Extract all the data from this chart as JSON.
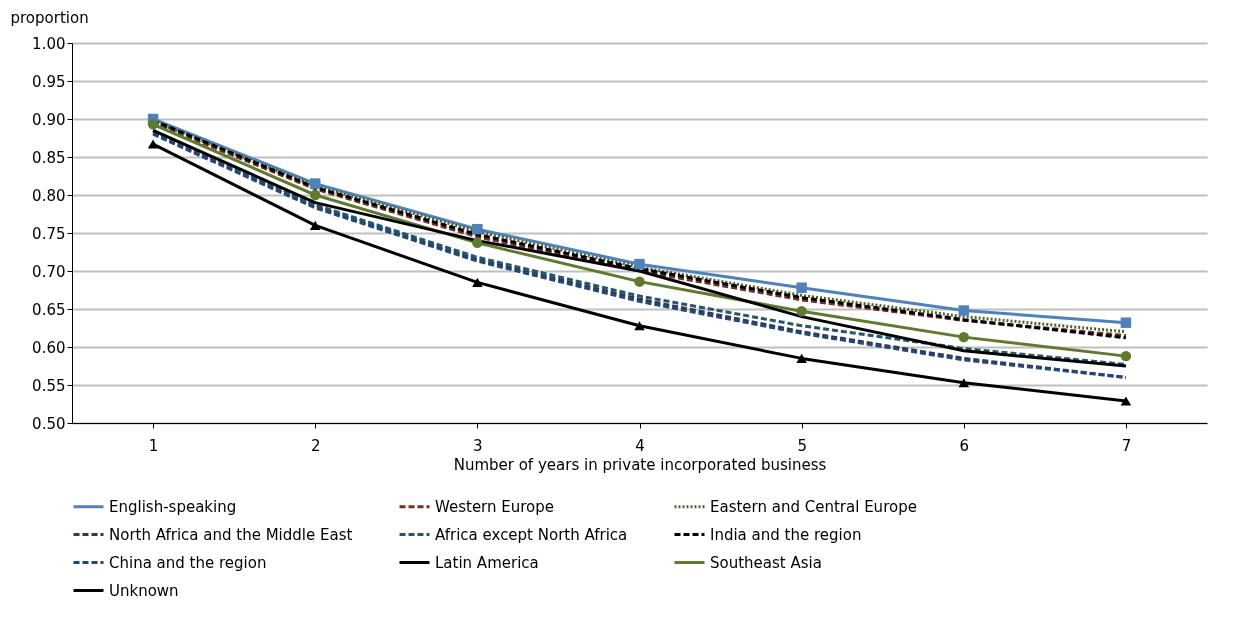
{
  "chart_data": {
    "type": "line",
    "ylabel": "proportion",
    "xlabel": "Number of years in private incorporated business",
    "x": [
      1,
      2,
      3,
      4,
      5,
      6,
      7
    ],
    "xlim": [
      0.5,
      7.5
    ],
    "xticks": [
      1,
      2,
      3,
      4,
      5,
      6,
      7
    ],
    "ylim": [
      0.5,
      1.0
    ],
    "yticks": [
      {
        "value": 0.5,
        "label": "0.50"
      },
      {
        "value": 0.55,
        "label": "0.55"
      },
      {
        "value": 0.6,
        "label": "0.60"
      },
      {
        "value": 0.65,
        "label": "0.65"
      },
      {
        "value": 0.7,
        "label": "0.70"
      },
      {
        "value": 0.75,
        "label": "0.75"
      },
      {
        "value": 0.8,
        "label": "0.80"
      },
      {
        "value": 0.85,
        "label": "0.85"
      },
      {
        "value": 0.9,
        "label": "0.90"
      },
      {
        "value": 0.95,
        "label": "0.95"
      },
      {
        "value": 1.0,
        "label": "1.00"
      }
    ],
    "grid": "y",
    "legend": "bottom",
    "series": [
      {
        "name": "English-speaking",
        "color": "#4f81bd",
        "marker": "square",
        "line_style": "solid",
        "values": [
          0.9,
          0.815,
          0.755,
          0.709,
          0.678,
          0.648,
          0.632
        ]
      },
      {
        "name": "Western Europe",
        "color": "#772c2a",
        "line_style": "dashed",
        "values": [
          0.895,
          0.808,
          0.745,
          0.7,
          0.662,
          0.635,
          0.615
        ]
      },
      {
        "name": "Eastern and Central Europe",
        "color": "#4f6228",
        "line_style": "dotted",
        "values": [
          0.897,
          0.812,
          0.752,
          0.705,
          0.668,
          0.64,
          0.62
        ]
      },
      {
        "name": "North Africa and the Middle East",
        "color": "#403152",
        "line_style": "dashed",
        "values": [
          0.882,
          0.785,
          0.715,
          0.663,
          0.62,
          0.585,
          0.56
        ]
      },
      {
        "name": "Africa except North Africa",
        "color": "#215968",
        "line_style": "dashed",
        "values": [
          0.885,
          0.787,
          0.718,
          0.667,
          0.628,
          0.598,
          0.577
        ]
      },
      {
        "name": "India and the region",
        "color": "#000000",
        "line_style": "dashed",
        "values": [
          0.898,
          0.81,
          0.748,
          0.703,
          0.665,
          0.636,
          0.612
        ]
      },
      {
        "name": "China and the region",
        "color": "#1f497d",
        "line_style": "dashed",
        "values": [
          0.88,
          0.783,
          0.713,
          0.66,
          0.618,
          0.583,
          0.56
        ]
      },
      {
        "name": "Latin America",
        "color": "#010101",
        "marker": "triangle",
        "line_style": "solid",
        "values": [
          0.867,
          0.76,
          0.685,
          0.628,
          0.585,
          0.553,
          0.529
        ]
      },
      {
        "name": "Southeast Asia",
        "color": "#5e7a2e",
        "marker": "circle",
        "line_style": "solid",
        "values": [
          0.893,
          0.8,
          0.737,
          0.686,
          0.647,
          0.613,
          0.588
        ]
      },
      {
        "name": "Unknown",
        "color": "#020202",
        "line_style": "solid",
        "values": [
          0.885,
          0.79,
          0.74,
          0.7,
          0.64,
          0.595,
          0.575
        ]
      }
    ]
  }
}
